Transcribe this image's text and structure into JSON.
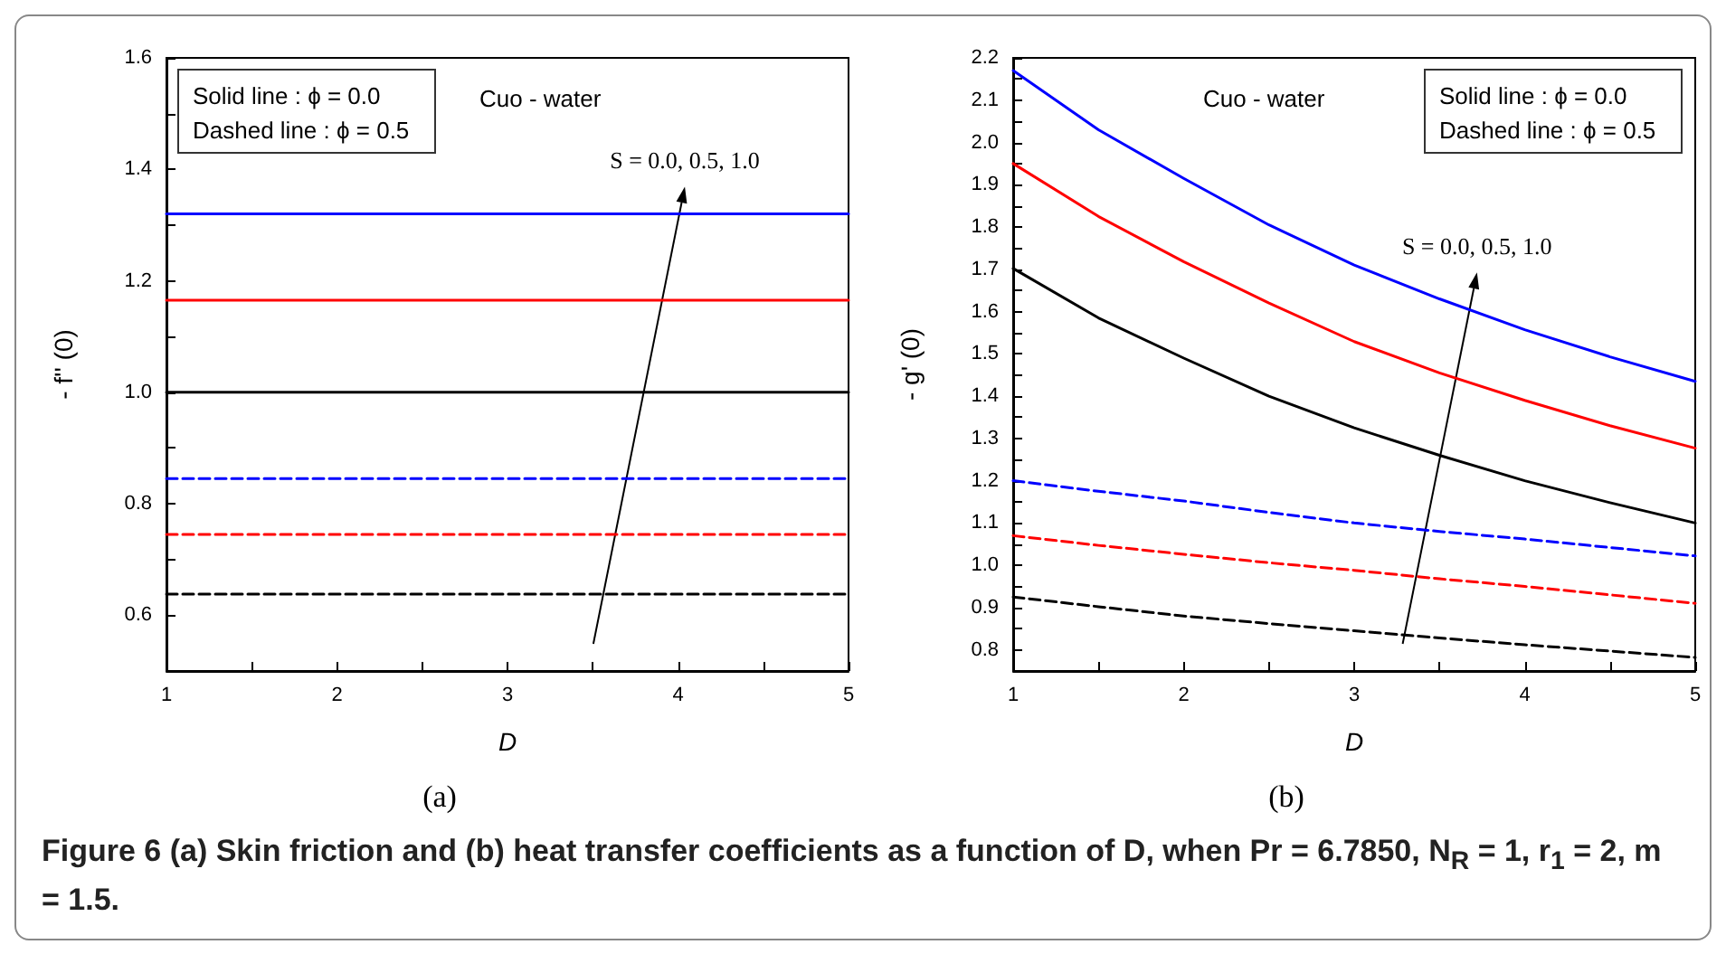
{
  "chart_data": [
    {
      "type": "line",
      "subtitle": "(a)",
      "xlabel": "D",
      "ylabel": "- f'' (0)",
      "marker": "none",
      "grid": false,
      "xlim": [
        1,
        5
      ],
      "xticks": [
        1,
        {
          "value": 1.5,
          "label": null
        },
        2,
        {
          "value": 2.5,
          "label": null
        },
        3,
        {
          "value": 3.5,
          "label": null
        },
        4,
        {
          "value": 4.5,
          "label": null
        },
        5
      ],
      "ylim": [
        0.5,
        1.6
      ],
      "yticks": [
        {
          "value": 0.5,
          "label": null
        },
        0.6,
        {
          "value": 0.7,
          "label": null
        },
        0.8,
        {
          "value": 0.9,
          "label": null
        },
        {
          "value": 1,
          "label": "1.0"
        },
        {
          "value": 1.1,
          "label": null
        },
        1.2,
        {
          "value": 1.3,
          "label": null
        },
        1.4,
        {
          "value": 1.5,
          "label": null
        },
        1.6
      ],
      "x": [
        1,
        5
      ],
      "series": [
        {
          "color": "#0000ff",
          "line_style": "solid",
          "values": [
            1.32,
            1.32
          ]
        },
        {
          "color": "#ff0000",
          "line_style": "solid",
          "values": [
            1.165,
            1.165
          ]
        },
        {
          "color": "#000000",
          "line_style": "solid",
          "values": [
            1.0,
            1.0
          ]
        },
        {
          "color": "#0000ff",
          "line_style": "dashed",
          "values": [
            0.845,
            0.845
          ]
        },
        {
          "color": "#ff0000",
          "line_style": "dashed",
          "values": [
            0.745,
            0.745
          ]
        },
        {
          "color": "#000000",
          "line_style": "dashed",
          "values": [
            0.638,
            0.638
          ]
        }
      ],
      "annotations": [
        "Solid line : ϕ = 0.0",
        "Dashed line : ϕ = 0.5",
        "Cuo - water",
        "S = 0.0, 0.5, 1.0",
        "Figure 6  (a) Skin friction and (b) heat transfer coefficients as a function of D, when Pr = 6.7850, N$_{R}$ = 1, r$_{1}$ = 2, m = 1.5."
      ]
    },
    {
      "type": "line",
      "subtitle": "(b)",
      "xlabel": "D",
      "ylabel": "- g' (0)",
      "marker": "none",
      "grid": false,
      "xlim": [
        1,
        5
      ],
      "xticks": [
        1,
        {
          "value": 1.5,
          "label": null
        },
        2,
        {
          "value": 2.5,
          "label": null
        },
        3,
        {
          "value": 3.5,
          "label": null
        },
        4,
        {
          "value": 4.5,
          "label": null
        },
        5
      ],
      "ylim": [
        0.75,
        2.2
      ],
      "yticks": [
        {
          "value": 0.75,
          "label": null
        },
        0.8,
        {
          "value": 0.85,
          "label": null
        },
        0.9,
        {
          "value": 0.95,
          "label": null
        },
        {
          "value": 1,
          "label": "1.0"
        },
        {
          "value": 1.05,
          "label": null
        },
        1.1,
        {
          "value": 1.15,
          "label": null
        },
        1.2,
        {
          "value": 1.25,
          "label": null
        },
        1.3,
        {
          "value": 1.35,
          "label": null
        },
        1.4,
        {
          "value": 1.45,
          "label": null
        },
        1.5,
        {
          "value": 1.55,
          "label": null
        },
        1.6,
        {
          "value": 1.65,
          "label": null
        },
        1.7,
        {
          "value": 1.75,
          "label": null
        },
        1.8,
        {
          "value": 1.85,
          "label": null
        },
        1.9,
        {
          "value": 1.95,
          "label": null
        },
        {
          "value": 2,
          "label": "2.0"
        },
        {
          "value": 2.05,
          "label": null
        },
        2.1,
        {
          "value": 2.15,
          "label": null
        },
        2.2
      ],
      "x": [
        1,
        1.5,
        2,
        2.5,
        3,
        3.5,
        4,
        4.5,
        5
      ],
      "series": [
        {
          "color": "#0000ff",
          "line_style": "solid",
          "values": [
            2.17,
            2.03,
            1.915,
            1.805,
            1.71,
            1.63,
            1.557,
            1.493,
            1.435
          ]
        },
        {
          "color": "#ff0000",
          "line_style": "solid",
          "values": [
            1.95,
            1.825,
            1.718,
            1.62,
            1.529,
            1.455,
            1.39,
            1.33,
            1.277
          ]
        },
        {
          "color": "#000000",
          "line_style": "solid",
          "values": [
            1.702,
            1.585,
            1.49,
            1.4,
            1.325,
            1.26,
            1.2,
            1.148,
            1.1
          ]
        },
        {
          "color": "#0000ff",
          "line_style": "dashed",
          "values": [
            1.2,
            1.175,
            1.152,
            1.125,
            1.1,
            1.08,
            1.062,
            1.042,
            1.022
          ]
        },
        {
          "color": "#ff0000",
          "line_style": "dashed",
          "values": [
            1.07,
            1.047,
            1.026,
            1.006,
            0.988,
            0.968,
            0.95,
            0.93,
            0.91
          ]
        },
        {
          "color": "#000000",
          "line_style": "dashed",
          "values": [
            0.925,
            0.902,
            0.88,
            0.862,
            0.845,
            0.828,
            0.812,
            0.797,
            0.782
          ]
        }
      ],
      "annotations": [
        "Solid line : ϕ = 0.0",
        "Dashed line : ϕ = 0.5",
        "Cuo - water",
        "S = 0.0, 0.5, 1.0"
      ]
    }
  ]
}
